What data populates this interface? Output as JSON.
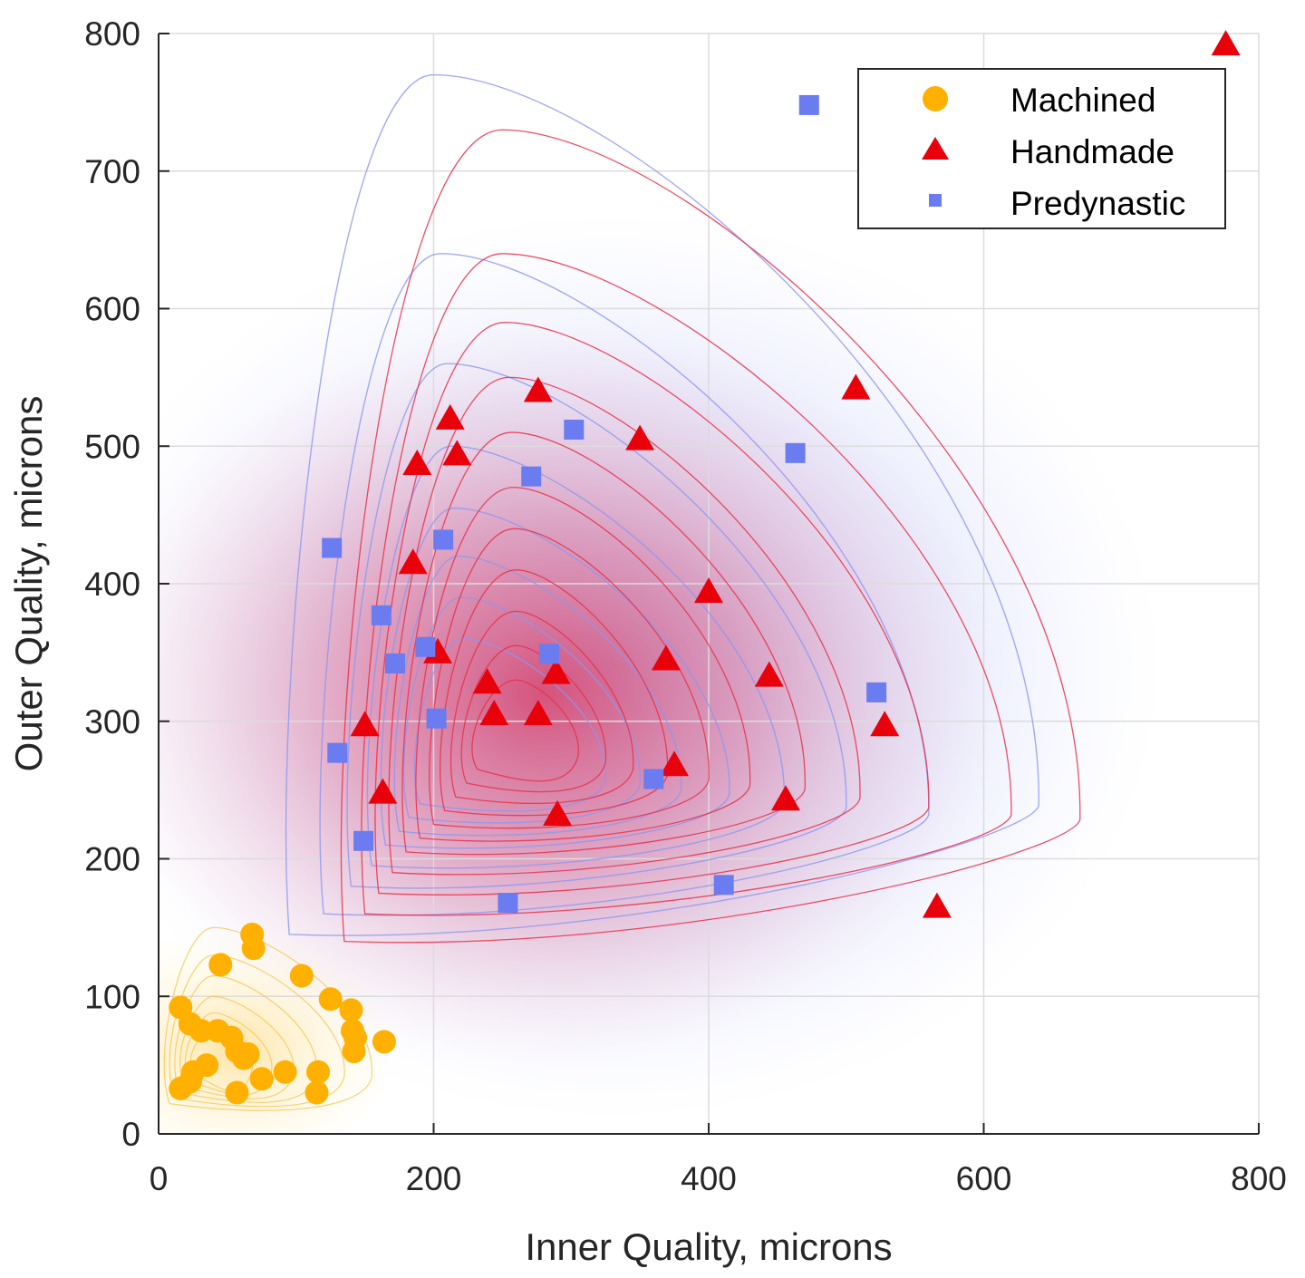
{
  "chart_data": {
    "type": "scatter",
    "title": "",
    "xlabel": "Inner Quality, microns",
    "ylabel": "Outer Quality, microns",
    "xlim": [
      0,
      800
    ],
    "ylim": [
      0,
      800
    ],
    "xticks": [
      0,
      200,
      400,
      600,
      800
    ],
    "yticks": [
      0,
      100,
      200,
      300,
      400,
      500,
      600,
      700,
      800
    ],
    "grid": true,
    "legend_position": "top-right",
    "density_contours": true,
    "series": [
      {
        "name": "Machined",
        "marker": "circle",
        "color": "#FFB000",
        "points": [
          [
            68,
            145
          ],
          [
            69,
            135
          ],
          [
            45,
            123
          ],
          [
            104,
            115
          ],
          [
            125,
            98
          ],
          [
            140,
            90
          ],
          [
            16,
            92
          ],
          [
            23,
            80
          ],
          [
            31,
            75
          ],
          [
            43,
            75
          ],
          [
            53,
            70
          ],
          [
            57,
            60
          ],
          [
            62,
            55
          ],
          [
            141,
            75
          ],
          [
            143,
            70
          ],
          [
            142,
            60
          ],
          [
            164,
            67
          ],
          [
            92,
            45
          ],
          [
            116,
            45
          ],
          [
            25,
            45
          ],
          [
            23,
            38
          ],
          [
            75,
            40
          ],
          [
            16,
            33
          ],
          [
            57,
            30
          ],
          [
            115,
            30
          ],
          [
            35,
            50
          ],
          [
            65,
            58
          ]
        ]
      },
      {
        "name": "Handmade",
        "marker": "triangle",
        "color": "#E8000B",
        "points": [
          [
            776,
            792
          ],
          [
            507,
            542
          ],
          [
            276,
            540
          ],
          [
            212,
            520
          ],
          [
            217,
            494
          ],
          [
            188,
            487
          ],
          [
            350,
            505
          ],
          [
            185,
            415
          ],
          [
            400,
            394
          ],
          [
            203,
            350
          ],
          [
            369,
            345
          ],
          [
            239,
            328
          ],
          [
            289,
            335
          ],
          [
            444,
            333
          ],
          [
            244,
            305
          ],
          [
            276,
            305
          ],
          [
            150,
            297
          ],
          [
            528,
            297
          ],
          [
            375,
            268
          ],
          [
            163,
            248
          ],
          [
            456,
            243
          ],
          [
            290,
            232
          ],
          [
            566,
            165
          ]
        ]
      },
      {
        "name": "Predynastic",
        "marker": "square",
        "color": "#6B7BF0",
        "points": [
          [
            473,
            748
          ],
          [
            302,
            512
          ],
          [
            463,
            495
          ],
          [
            271,
            478
          ],
          [
            207,
            432
          ],
          [
            126,
            426
          ],
          [
            162,
            377
          ],
          [
            172,
            342
          ],
          [
            194,
            354
          ],
          [
            284,
            349
          ],
          [
            522,
            321
          ],
          [
            202,
            302
          ],
          [
            130,
            277
          ],
          [
            360,
            258
          ],
          [
            149,
            213
          ],
          [
            254,
            168
          ],
          [
            411,
            181
          ]
        ]
      }
    ]
  },
  "colors": {
    "grid": "#dcdcdc",
    "axis": "#262626",
    "handmade_density": "#e0406a",
    "predynastic_contour": "#8c96f0",
    "machined_density": "#ffd060"
  }
}
